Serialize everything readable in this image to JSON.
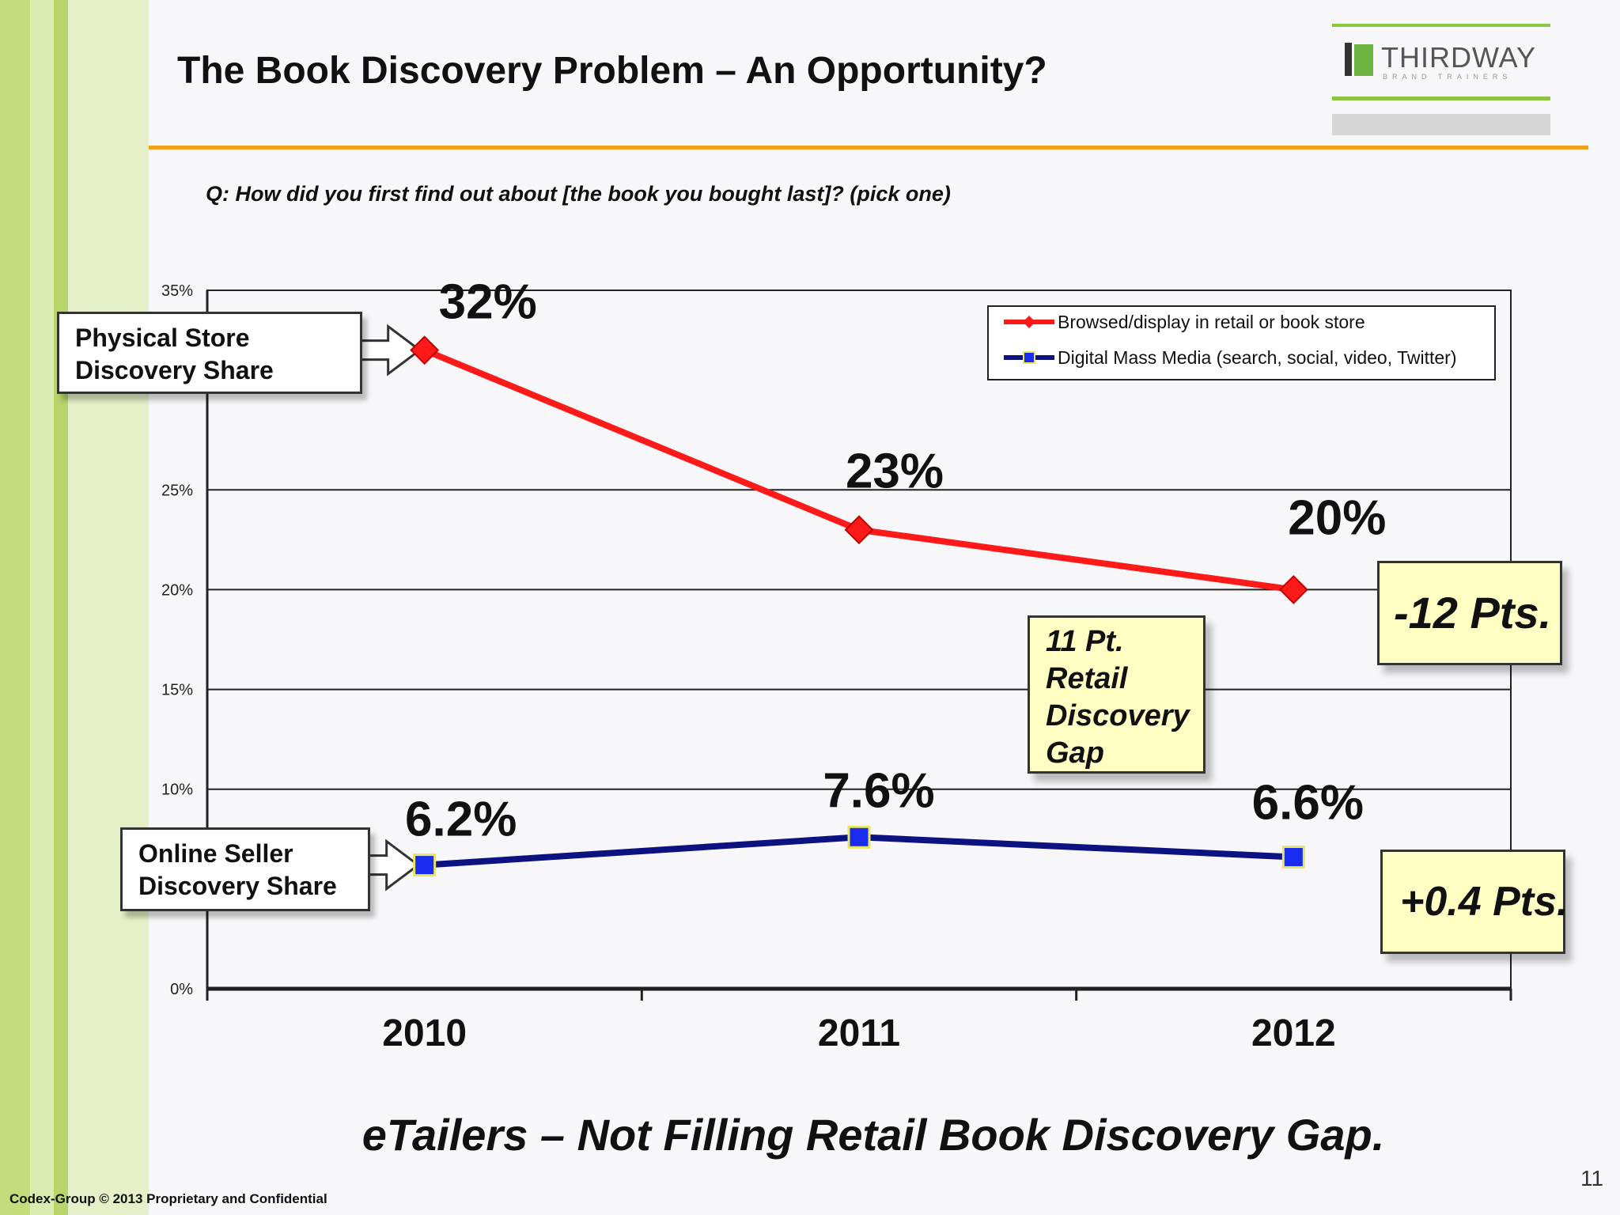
{
  "slide": {
    "title": "The Book Discovery Problem – An Opportunity?",
    "question": "Q: How did you first find out about [the book you bought last]? (pick one)",
    "subtitle": "eTailers – Not Filling Retail Book Discovery Gap.",
    "footer": "Codex-Group © 2013 Proprietary and Confidential",
    "page_number": "11"
  },
  "logo": {
    "name": "THIRDWAY",
    "tagline": "BRAND TRAINERS"
  },
  "callouts": {
    "physical_store": [
      "Physical Store",
      "Discovery Share"
    ],
    "online_seller": [
      "Online Seller",
      "Discovery Share"
    ]
  },
  "notes": {
    "retail_change": "-12 Pts.",
    "digital_change": "+0.4 Pts.",
    "gap": [
      "11 Pt.",
      "Retail",
      "Discovery",
      "Gap"
    ]
  },
  "colors": {
    "retail_series": "#ff1a1a",
    "digital_series": "#0c1280",
    "digital_marker": "#1a2cf0",
    "note_fill": "#ffffc4",
    "accent_rule": "#f4a11d",
    "brand_green": "#8cc63f"
  },
  "chart_data": {
    "type": "line",
    "categories": [
      "2010",
      "2011",
      "2012"
    ],
    "ylim": [
      0,
      35
    ],
    "y_ticks": [
      0,
      10,
      15,
      20,
      25,
      35
    ],
    "y_tick_labels": [
      "0%",
      "10%",
      "15%",
      "20%",
      "25%",
      "35%"
    ],
    "gridlines": true,
    "legend_position": "top-right",
    "series": [
      {
        "name": "Browsed/display in retail or book store",
        "values": [
          32,
          23,
          20
        ],
        "labels": [
          "32%",
          "23%",
          "20%"
        ],
        "marker": "diamond"
      },
      {
        "name": "Digital Mass Media (search, social, video, Twitter)",
        "values": [
          6.2,
          7.6,
          6.6
        ],
        "labels": [
          "6.2%",
          "7.6%",
          "6.6%"
        ],
        "marker": "square"
      }
    ]
  }
}
